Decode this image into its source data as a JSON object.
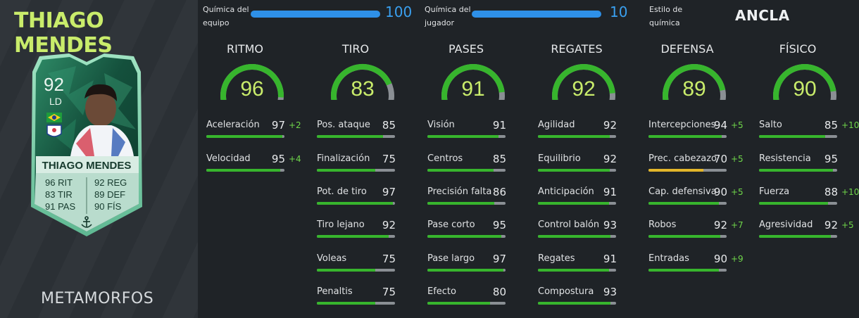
{
  "player": {
    "name": "THIAGO MENDES",
    "version": "METAMORFOS",
    "card": {
      "rating": "92",
      "position": "LD",
      "name": "THIAGO MENDES",
      "stats_left": [
        {
          "value": "96",
          "abbr": "RIT"
        },
        {
          "value": "83",
          "abbr": "TIR"
        },
        {
          "value": "91",
          "abbr": "PAS"
        }
      ],
      "stats_right": [
        {
          "value": "92",
          "abbr": "REG"
        },
        {
          "value": "89",
          "abbr": "DEF"
        },
        {
          "value": "90",
          "abbr": "FÍS"
        }
      ],
      "icons": [
        "brazil-flag-icon",
        "club-crest-icon",
        "anchor-icon"
      ]
    }
  },
  "chemistry": {
    "team": {
      "label_line1": "Química del",
      "label_line2": "equipo",
      "value": "100",
      "fill": 1.0
    },
    "player": {
      "label_line1": "Química del",
      "label_line2": "jugador",
      "value": "10",
      "fill": 1.0
    },
    "style": {
      "label_line1": "Estilo de",
      "label_line2": "química",
      "value": "ANCLA"
    }
  },
  "colors": {
    "accent_name": "#c9ec6b",
    "gauge_green": "#37b52d",
    "chem_blue": "#2e90e8",
    "boost_green": "#6fd64a",
    "warning_yellow": "#e3b62a"
  },
  "categories": [
    {
      "title": "RITMO",
      "value": "96",
      "stats": [
        {
          "label": "Aceleración",
          "value": "97",
          "boost": "+2"
        },
        {
          "label": "Velocidad",
          "value": "95",
          "boost": "+4"
        }
      ]
    },
    {
      "title": "TIRO",
      "value": "83",
      "stats": [
        {
          "label": "Pos. ataque",
          "value": "85",
          "boost": ""
        },
        {
          "label": "Finalización",
          "value": "75",
          "boost": ""
        },
        {
          "label": "Pot. de tiro",
          "value": "97",
          "boost": ""
        },
        {
          "label": "Tiro lejano",
          "value": "92",
          "boost": ""
        },
        {
          "label": "Voleas",
          "value": "75",
          "boost": ""
        },
        {
          "label": "Penaltis",
          "value": "75",
          "boost": ""
        }
      ]
    },
    {
      "title": "PASES",
      "value": "91",
      "stats": [
        {
          "label": "Visión",
          "value": "91",
          "boost": ""
        },
        {
          "label": "Centros",
          "value": "85",
          "boost": ""
        },
        {
          "label": "Precisión falta",
          "value": "86",
          "boost": ""
        },
        {
          "label": "Pase corto",
          "value": "95",
          "boost": ""
        },
        {
          "label": "Pase largo",
          "value": "97",
          "boost": ""
        },
        {
          "label": "Efecto",
          "value": "80",
          "boost": ""
        }
      ]
    },
    {
      "title": "REGATES",
      "value": "92",
      "stats": [
        {
          "label": "Agilidad",
          "value": "92",
          "boost": ""
        },
        {
          "label": "Equilibrio",
          "value": "92",
          "boost": ""
        },
        {
          "label": "Anticipación",
          "value": "91",
          "boost": ""
        },
        {
          "label": "Control balón",
          "value": "93",
          "boost": ""
        },
        {
          "label": "Regates",
          "value": "91",
          "boost": ""
        },
        {
          "label": "Compostura",
          "value": "93",
          "boost": ""
        }
      ]
    },
    {
      "title": "DEFENSA",
      "value": "89",
      "stats": [
        {
          "label": "Intercepciones",
          "value": "94",
          "boost": "+5"
        },
        {
          "label": "Prec. cabezazo",
          "value": "70",
          "boost": "+5",
          "warn": true
        },
        {
          "label": "Cap. defensiva",
          "value": "90",
          "boost": "+5"
        },
        {
          "label": "Robos",
          "value": "92",
          "boost": "+7"
        },
        {
          "label": "Entradas",
          "value": "90",
          "boost": "+9"
        }
      ]
    },
    {
      "title": "FÍSICO",
      "value": "90",
      "stats": [
        {
          "label": "Salto",
          "value": "85",
          "boost": "+10"
        },
        {
          "label": "Resistencia",
          "value": "95",
          "boost": ""
        },
        {
          "label": "Fuerza",
          "value": "88",
          "boost": "+10"
        },
        {
          "label": "Agresividad",
          "value": "92",
          "boost": "+5"
        }
      ]
    }
  ]
}
